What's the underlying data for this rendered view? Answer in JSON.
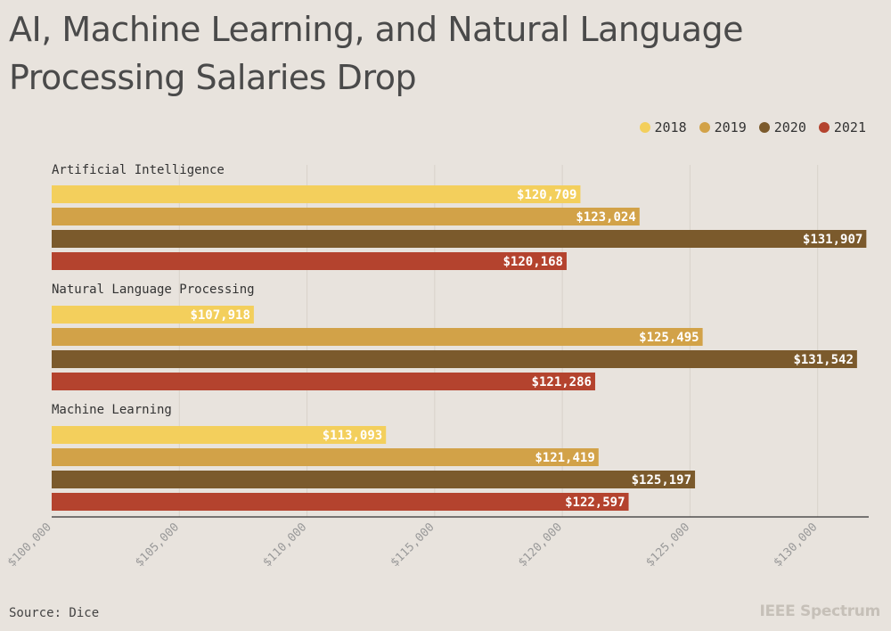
{
  "chart_data": {
    "type": "bar",
    "orientation": "horizontal",
    "title": "AI, Machine Learning, and Natural Language Processing Salaries Drop",
    "categories": [
      "Artificial Intelligence",
      "Natural Language Processing",
      "Machine Learning"
    ],
    "series": [
      {
        "name": "2018",
        "color": "#f3cf5c",
        "values": [
          120709,
          107918,
          113093
        ],
        "labels": [
          "$120,709",
          "$107,918",
          "$113,093"
        ]
      },
      {
        "name": "2019",
        "color": "#d2a248",
        "values": [
          123024,
          125495,
          121419
        ],
        "labels": [
          "$123,024",
          "$125,495",
          "$121,419"
        ]
      },
      {
        "name": "2020",
        "color": "#7b5a2c",
        "values": [
          131907,
          131542,
          125197
        ],
        "labels": [
          "$131,907",
          "$131,542",
          "$125,197"
        ]
      },
      {
        "name": "2021",
        "color": "#b4432e",
        "values": [
          120168,
          121286,
          122597
        ],
        "labels": [
          "$120,168",
          "$121,286",
          "$122,597"
        ]
      }
    ],
    "xlim": [
      100000,
      132000
    ],
    "xticks": [
      100000,
      105000,
      110000,
      115000,
      120000,
      125000,
      130000
    ],
    "xtick_labels": [
      "$100,000",
      "$105,000",
      "$110,000",
      "$115,000",
      "$120,000",
      "$125,000",
      "$130,000"
    ],
    "grid": true,
    "legend_position": "top-right",
    "source": "Source: Dice",
    "brand": "IEEE Spectrum"
  }
}
